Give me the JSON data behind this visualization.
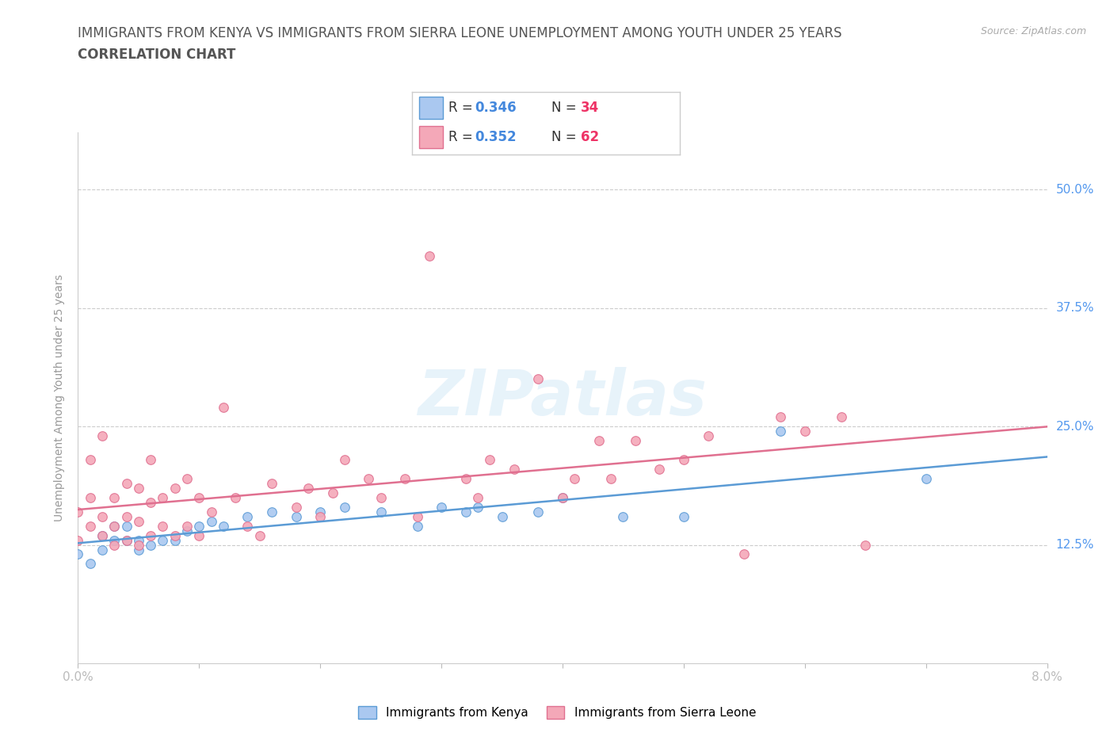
{
  "title_line1": "IMMIGRANTS FROM KENYA VS IMMIGRANTS FROM SIERRA LEONE UNEMPLOYMENT AMONG YOUTH UNDER 25 YEARS",
  "title_line2": "CORRELATION CHART",
  "source_text": "Source: ZipAtlas.com",
  "ylabel": "Unemployment Among Youth under 25 years",
  "xlim": [
    0.0,
    0.08
  ],
  "ylim": [
    0.0,
    0.56
  ],
  "x_ticks": [
    0.0,
    0.01,
    0.02,
    0.03,
    0.04,
    0.05,
    0.06,
    0.07,
    0.08
  ],
  "x_tick_labels": [
    "0.0%",
    "",
    "",
    "",
    "",
    "",
    "",
    "",
    "8.0%"
  ],
  "y_ticks": [
    0.125,
    0.25,
    0.375,
    0.5
  ],
  "y_tick_labels": [
    "12.5%",
    "25.0%",
    "37.5%",
    "50.0%"
  ],
  "kenya_color": "#aac8f0",
  "kenya_color_line": "#5b9bd5",
  "sierra_color": "#f4a8b8",
  "sierra_color_line": "#e07090",
  "kenya_R": 0.346,
  "kenya_N": 34,
  "sierra_R": 0.352,
  "sierra_N": 62,
  "kenya_scatter_x": [
    0.0,
    0.001,
    0.002,
    0.002,
    0.003,
    0.003,
    0.004,
    0.004,
    0.005,
    0.005,
    0.006,
    0.007,
    0.008,
    0.009,
    0.01,
    0.011,
    0.012,
    0.014,
    0.016,
    0.018,
    0.02,
    0.022,
    0.025,
    0.028,
    0.03,
    0.032,
    0.033,
    0.035,
    0.038,
    0.04,
    0.045,
    0.05,
    0.058,
    0.07
  ],
  "kenya_scatter_y": [
    0.115,
    0.105,
    0.135,
    0.12,
    0.145,
    0.13,
    0.13,
    0.145,
    0.12,
    0.13,
    0.125,
    0.13,
    0.13,
    0.14,
    0.145,
    0.15,
    0.145,
    0.155,
    0.16,
    0.155,
    0.16,
    0.165,
    0.16,
    0.145,
    0.165,
    0.16,
    0.165,
    0.155,
    0.16,
    0.175,
    0.155,
    0.155,
    0.245,
    0.195
  ],
  "sierra_scatter_x": [
    0.0,
    0.0,
    0.001,
    0.001,
    0.001,
    0.002,
    0.002,
    0.002,
    0.003,
    0.003,
    0.003,
    0.004,
    0.004,
    0.004,
    0.005,
    0.005,
    0.005,
    0.006,
    0.006,
    0.006,
    0.007,
    0.007,
    0.008,
    0.008,
    0.009,
    0.009,
    0.01,
    0.01,
    0.011,
    0.012,
    0.013,
    0.014,
    0.015,
    0.016,
    0.018,
    0.019,
    0.02,
    0.021,
    0.022,
    0.024,
    0.025,
    0.027,
    0.028,
    0.029,
    0.032,
    0.033,
    0.034,
    0.036,
    0.038,
    0.04,
    0.041,
    0.043,
    0.044,
    0.046,
    0.048,
    0.05,
    0.052,
    0.055,
    0.058,
    0.06,
    0.063,
    0.065
  ],
  "sierra_scatter_y": [
    0.13,
    0.16,
    0.145,
    0.175,
    0.215,
    0.135,
    0.155,
    0.24,
    0.125,
    0.145,
    0.175,
    0.13,
    0.155,
    0.19,
    0.125,
    0.15,
    0.185,
    0.135,
    0.17,
    0.215,
    0.145,
    0.175,
    0.135,
    0.185,
    0.145,
    0.195,
    0.135,
    0.175,
    0.16,
    0.27,
    0.175,
    0.145,
    0.135,
    0.19,
    0.165,
    0.185,
    0.155,
    0.18,
    0.215,
    0.195,
    0.175,
    0.195,
    0.155,
    0.43,
    0.195,
    0.175,
    0.215,
    0.205,
    0.3,
    0.175,
    0.195,
    0.235,
    0.195,
    0.235,
    0.205,
    0.215,
    0.24,
    0.115,
    0.26,
    0.245,
    0.26,
    0.125
  ],
  "background_color": "#ffffff",
  "grid_color": "#cccccc",
  "title_color": "#555555",
  "axis_label_color": "#999999",
  "tick_color": "#5599ee",
  "source_color": "#aaaaaa"
}
